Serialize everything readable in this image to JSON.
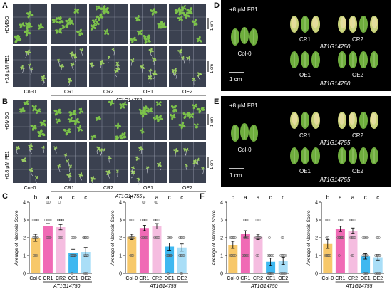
{
  "panels": {
    "A": {
      "letter": "A",
      "row_labels": [
        "+DMSO",
        "+0.8 μM FB1"
      ],
      "col_labels": [
        "Col-0",
        "CR1",
        "CR2",
        "OE1",
        "OE2"
      ],
      "gene": "AT1G14750",
      "scale": "1 cm"
    },
    "B": {
      "letter": "B",
      "row_labels": [
        "+DMSO",
        "+0.8 μM FB1"
      ],
      "col_labels": [
        "Col-0",
        "CR1",
        "CR2",
        "OE1",
        "OE2"
      ],
      "gene": "AT1G14755",
      "scale": "1 cm"
    },
    "D": {
      "letter": "D",
      "treatment": "+8 μM FB1",
      "labels": [
        "Col-0",
        "CR1",
        "CR2",
        "OE1",
        "OE2"
      ],
      "gene": "AT1G14750",
      "scale": "1 cm"
    },
    "E": {
      "letter": "E",
      "treatment": "+8 μM FB1",
      "labels": [
        "Col-0",
        "CR1",
        "CR2",
        "OE1",
        "OE2"
      ],
      "gene": "AT1G14755",
      "scale": "1 cm"
    },
    "C": {
      "letter": "C"
    },
    "F": {
      "letter": "F"
    }
  },
  "chart_data": [
    {
      "id": "C1",
      "type": "bar",
      "categories": [
        "Col-0",
        "CR1",
        "CR2",
        "OE1",
        "OE2"
      ],
      "values": [
        2.0,
        2.65,
        2.6,
        1.15,
        1.2
      ],
      "errors": [
        0.2,
        0.15,
        0.15,
        0.2,
        0.25
      ],
      "letters": [
        "b",
        "a",
        "a",
        "c",
        "c"
      ],
      "ylabel": "Average of Necrosis Score",
      "ylim": [
        0,
        4
      ],
      "yticks": [
        0,
        1,
        2,
        3,
        4
      ],
      "gene": "AT1G14750"
    },
    {
      "id": "C2",
      "type": "bar",
      "categories": [
        "Col-0",
        "CR1",
        "CR2",
        "OE1",
        "OE2"
      ],
      "values": [
        2.05,
        2.55,
        2.65,
        1.5,
        1.45
      ],
      "errors": [
        0.15,
        0.15,
        0.15,
        0.2,
        0.2
      ],
      "letters": [
        "b",
        "a",
        "a",
        "c",
        "c"
      ],
      "ylabel": "Average of Necrosis Score",
      "ylim": [
        0,
        4
      ],
      "yticks": [
        0,
        1,
        2,
        3,
        4
      ],
      "gene": "AT1G14755"
    },
    {
      "id": "F1",
      "type": "bar",
      "categories": [
        "Col-0",
        "CR1",
        "CR2",
        "OE1",
        "OE2"
      ],
      "values": [
        1.6,
        2.2,
        2.05,
        0.65,
        0.7
      ],
      "errors": [
        0.2,
        0.2,
        0.15,
        0.2,
        0.2
      ],
      "letters": [
        "b",
        "a",
        "a",
        "c",
        "c"
      ],
      "ylabel": "Average of Necrosis Score",
      "ylim": [
        0,
        4
      ],
      "yticks": [
        0,
        1,
        2,
        3,
        4
      ],
      "gene": "AT1G14750"
    },
    {
      "id": "F2",
      "type": "bar",
      "categories": [
        "Col-0",
        "CR1",
        "CR2",
        "OE1",
        "OE2"
      ],
      "values": [
        1.65,
        2.5,
        2.4,
        0.95,
        0.9
      ],
      "errors": [
        0.25,
        0.15,
        0.15,
        0.15,
        0.15
      ],
      "letters": [
        "b",
        "a",
        "a",
        "c",
        "c"
      ],
      "ylabel": "Average of Necrosis Score",
      "ylim": [
        0,
        4
      ],
      "yticks": [
        0,
        1,
        2,
        3,
        4
      ],
      "gene": "AT1G14755"
    }
  ],
  "colors": {
    "col0": "#f7c86a",
    "cr1": "#f06ab5",
    "cr2": "#f5bde0",
    "oe1": "#3fb8f0",
    "oe2": "#a9def7",
    "plate": "#3b4150",
    "grid": "#aab0c0"
  }
}
